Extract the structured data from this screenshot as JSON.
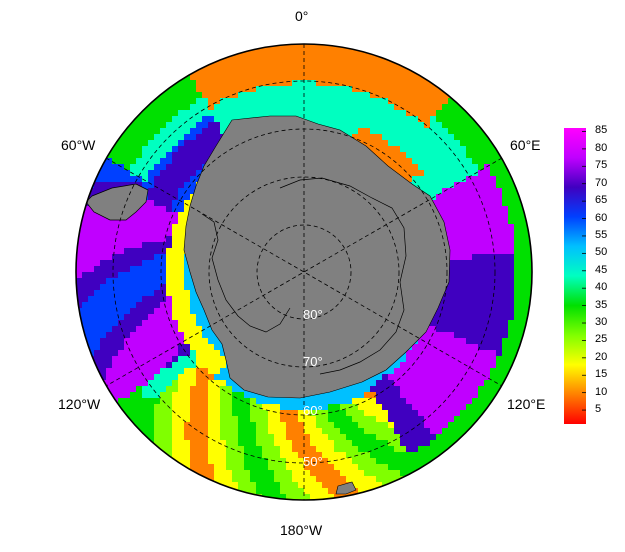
{
  "map": {
    "projection": "south-polar-stereographic",
    "longitude_labels": {
      "top": "0°",
      "upper_left": "60°W",
      "upper_right": "60°E",
      "lower_left": "120°W",
      "lower_right": "120°E",
      "bottom": "180°W"
    },
    "latitude_labels": [
      "80°",
      "70°",
      "60°",
      "50°"
    ],
    "land_color": "#808080",
    "coast_color": "#000000",
    "graticule_style": "dashed"
  },
  "colorbar": {
    "ticks": [
      "85",
      "80",
      "75",
      "70",
      "65",
      "60",
      "55",
      "50",
      "45",
      "40",
      "35",
      "30",
      "25",
      "20",
      "15",
      "10",
      "5"
    ],
    "range": [
      1,
      86
    ],
    "colors": [
      "#ff0000",
      "#ff8000",
      "#ffff00",
      "#80ff00",
      "#00e000",
      "#00ffc0",
      "#00c0ff",
      "#0040ff",
      "#4000c0",
      "#c000ff",
      "#ff00ff"
    ]
  }
}
